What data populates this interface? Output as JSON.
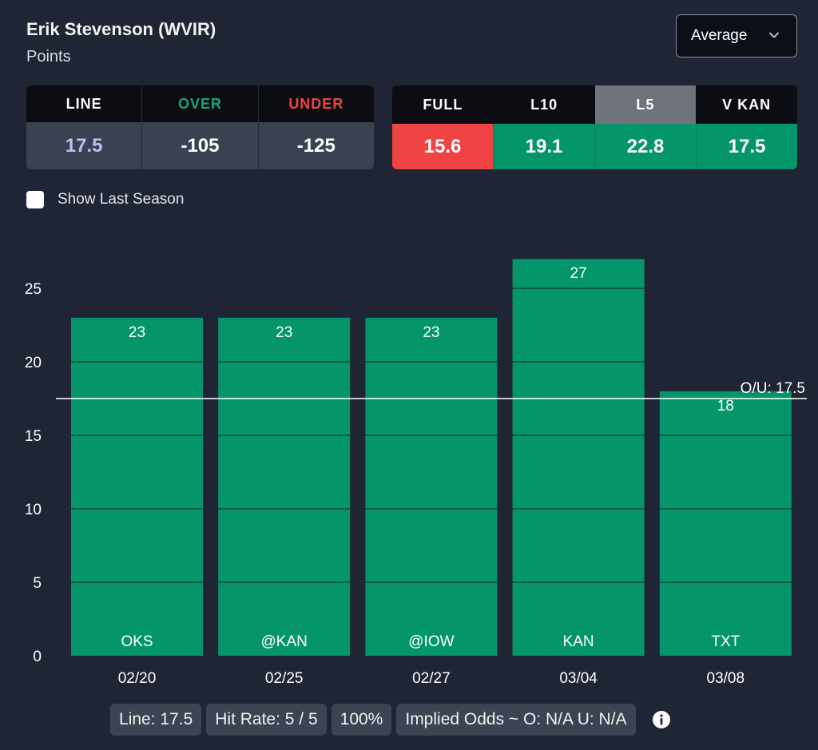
{
  "header": {
    "player_name": "Erik Stevenson (WVIR)",
    "stat_name": "Points"
  },
  "average_dropdown": {
    "selected": "Average",
    "icon": "chevron-down-icon"
  },
  "line_card": {
    "columns": [
      {
        "label": "LINE",
        "value": "17.5",
        "label_color": "#ffffff",
        "value_color": "#b9c2ee"
      },
      {
        "label": "OVER",
        "value": "-105",
        "label_color": "#17a673",
        "value_color": "#ffffff"
      },
      {
        "label": "UNDER",
        "value": "-125",
        "label_color": "#ef4444",
        "value_color": "#ffffff"
      }
    ]
  },
  "average_card": {
    "columns": [
      {
        "label": "FULL",
        "value": "15.6",
        "head_bg": "#0b0d12",
        "value_bg": "#ef4444"
      },
      {
        "label": "L10",
        "value": "19.1",
        "head_bg": "#0b0d12",
        "value_bg": "#04966a"
      },
      {
        "label": "L5",
        "value": "22.8",
        "head_bg": "#6f737c",
        "value_bg": "#04966a",
        "selected": true
      },
      {
        "label": "V KAN",
        "value": "17.5",
        "head_bg": "#0b0d12",
        "value_bg": "#04966a"
      }
    ]
  },
  "season_toggle": {
    "label": "Show Last Season",
    "checked": false
  },
  "chart_data": {
    "type": "bar",
    "categories": [
      "02/20",
      "02/25",
      "02/27",
      "03/04",
      "03/08"
    ],
    "opponents": [
      "OKS",
      "@KAN",
      "@IOW",
      "KAN",
      "TXT"
    ],
    "values": [
      23,
      23,
      23,
      27,
      18
    ],
    "value_labels": [
      "23",
      "23",
      "23",
      "27",
      "18"
    ],
    "yticks": [
      0,
      5,
      10,
      15,
      20,
      25
    ],
    "ylim": [
      0,
      27
    ],
    "line_value": 17.5,
    "line_label": "O/U: 17.5",
    "bar_color": "#04966a",
    "title": "",
    "xlabel": "",
    "ylabel": ""
  },
  "footer": {
    "line": "Line: 17.5",
    "hit_rate": "Hit Rate: 5 / 5",
    "percent": "100%",
    "implied_odds": "Implied Odds ~ O: N/A U: N/A",
    "info_icon": "info-icon"
  }
}
